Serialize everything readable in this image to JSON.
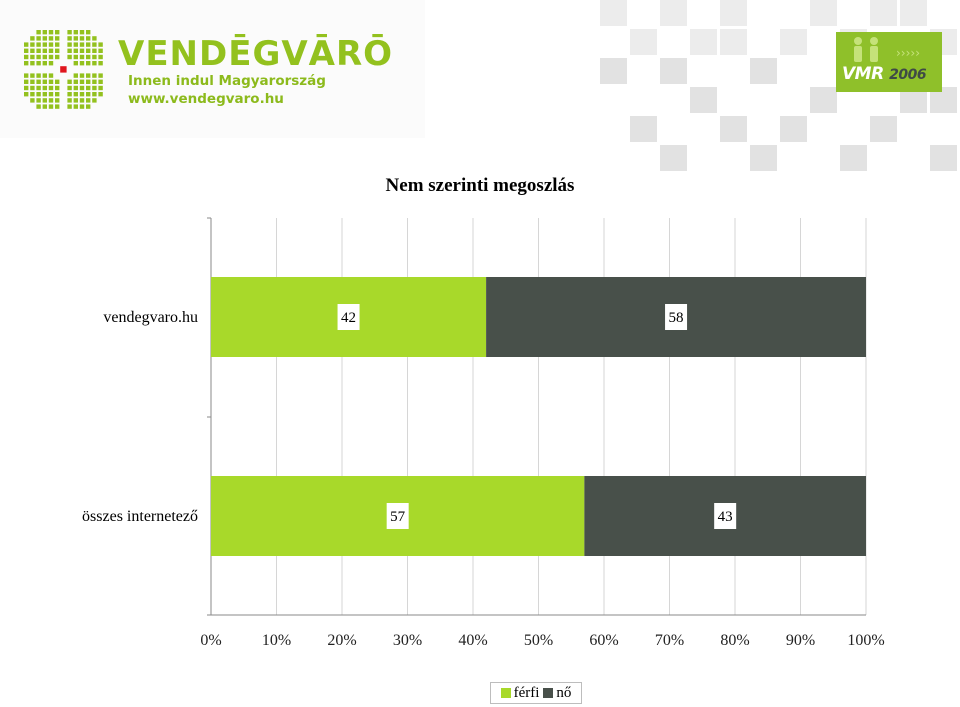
{
  "header": {
    "brand_name": "VENDĒGVĀRŌ",
    "tagline": "Innen indul Magyarország",
    "url": "www.vendegvaro.hu",
    "badge_text": "VMR",
    "badge_year": "2006"
  },
  "colors": {
    "ferfi": "#a8d92a",
    "no": "#48504a",
    "brand_green": "#93c11e",
    "grid": "#d6d6d6"
  },
  "chart_data": {
    "type": "bar",
    "orientation": "horizontal",
    "stacked": true,
    "title": "Nem szerinti megoszlás",
    "categories": [
      "vendegvaro.hu",
      "összes internetező"
    ],
    "series": [
      {
        "name": "férfi",
        "values": [
          42,
          57
        ]
      },
      {
        "name": "nő",
        "values": [
          58,
          43
        ]
      }
    ],
    "xlim": [
      0,
      100
    ],
    "x_ticks": [
      "0%",
      "10%",
      "20%",
      "30%",
      "40%",
      "50%",
      "60%",
      "70%",
      "80%",
      "90%",
      "100%"
    ],
    "grid": true,
    "legend_position": "bottom"
  }
}
